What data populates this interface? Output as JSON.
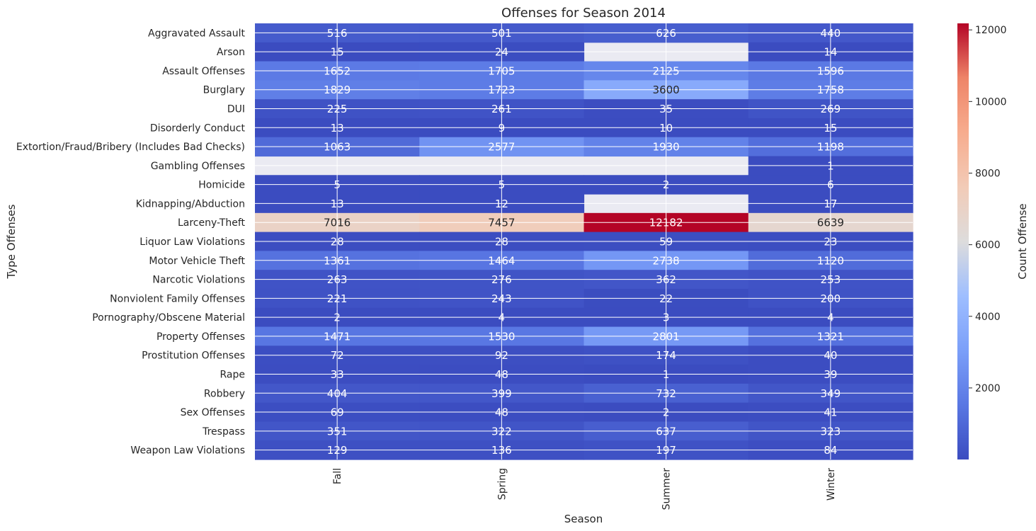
{
  "chart_data": {
    "type": "heatmap",
    "title": "Offenses for Season 2014",
    "xlabel": "Season",
    "ylabel": "Type Offenses",
    "x": [
      "Fall",
      "Spring",
      "Summer",
      "Winter"
    ],
    "y": [
      "Aggravated Assault",
      "Arson",
      "Assault Offenses",
      "Burglary",
      "DUI",
      "Disorderly Conduct",
      "Extortion/Fraud/Bribery (Includes Bad Checks)",
      "Gambling Offenses",
      "Homicide",
      "Kidnapping/Abduction",
      "Larceny-Theft",
      "Liquor Law Violations",
      "Motor Vehicle Theft",
      "Narcotic Violations",
      "Nonviolent Family Offenses",
      "Pornography/Obscene Material",
      "Property Offenses",
      "Prostitution Offenses",
      "Rape",
      "Robbery",
      "Sex Offenses",
      "Trespass",
      "Weapon Law Violations"
    ],
    "values": [
      [
        516,
        501,
        626,
        440
      ],
      [
        15,
        24,
        null,
        14
      ],
      [
        1652,
        1705,
        2125,
        1596
      ],
      [
        1829,
        1723,
        3600,
        1758
      ],
      [
        225,
        261,
        35,
        269
      ],
      [
        13,
        9,
        10,
        15
      ],
      [
        1063,
        2577,
        1930,
        1198
      ],
      [
        null,
        null,
        null,
        1
      ],
      [
        5,
        5,
        2,
        6
      ],
      [
        13,
        12,
        null,
        17
      ],
      [
        7016,
        7457,
        12182,
        6639
      ],
      [
        28,
        28,
        59,
        23
      ],
      [
        1361,
        1464,
        2738,
        1120
      ],
      [
        263,
        276,
        362,
        253
      ],
      [
        221,
        243,
        22,
        200
      ],
      [
        2,
        4,
        3,
        4
      ],
      [
        1471,
        1530,
        2801,
        1321
      ],
      [
        72,
        92,
        174,
        40
      ],
      [
        33,
        48,
        1,
        39
      ],
      [
        404,
        399,
        732,
        349
      ],
      [
        69,
        48,
        2,
        41
      ],
      [
        351,
        322,
        637,
        323
      ],
      [
        129,
        136,
        197,
        84
      ]
    ],
    "colormap": "coolwarm",
    "color_range": [
      1,
      12182
    ],
    "missing_color": "#eaeaf2",
    "colorbar": {
      "label": "Count Offense",
      "ticks": [
        2000,
        4000,
        6000,
        8000,
        10000,
        12000
      ]
    }
  }
}
